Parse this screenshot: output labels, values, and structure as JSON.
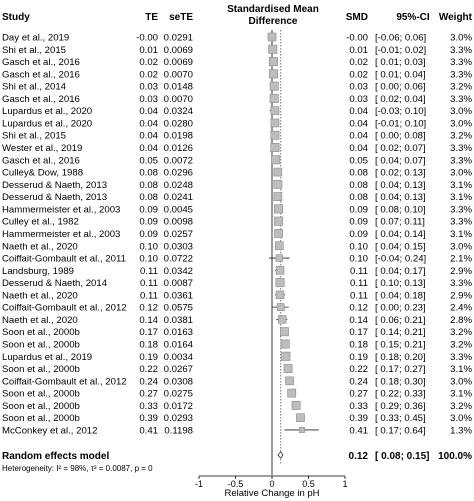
{
  "chart_data": {
    "type": "forest",
    "headers": {
      "study": "Study",
      "te": "TE",
      "sete": "seTE",
      "plot_title_line1": "Standardised Mean",
      "plot_title_line2": "Difference",
      "smd": "SMD",
      "ci": "95%-CI",
      "weight": "Weight"
    },
    "studies": [
      {
        "study": "Day et al., 2019",
        "te": "-0.00",
        "sete": "0.0291",
        "smd": -0.0,
        "lo": -0.06,
        "hi": 0.06,
        "ci": "[-0.06; 0.06]",
        "weight": "3.0%"
      },
      {
        "study": "Shi et al., 2015",
        "te": "0.01",
        "sete": "0.0069",
        "smd": 0.01,
        "lo": -0.01,
        "hi": 0.02,
        "ci": "[-0.01; 0.02]",
        "weight": "3.3%"
      },
      {
        "study": "Gasch et al., 2016",
        "te": "0.02",
        "sete": "0.0069",
        "smd": 0.02,
        "lo": 0.01,
        "hi": 0.03,
        "ci": "[ 0.01; 0.03]",
        "weight": "3.3%"
      },
      {
        "study": "Gasch et al., 2016",
        "te": "0.02",
        "sete": "0.0070",
        "smd": 0.02,
        "lo": 0.01,
        "hi": 0.04,
        "ci": "[ 0.01; 0.04]",
        "weight": "3.3%"
      },
      {
        "study": "Shi et al., 2014",
        "te": "0.03",
        "sete": "0.0148",
        "smd": 0.03,
        "lo": 0.0,
        "hi": 0.06,
        "ci": "[ 0.00; 0.06]",
        "weight": "3.2%"
      },
      {
        "study": "Gasch et al., 2016",
        "te": "0.03",
        "sete": "0.0070",
        "smd": 0.03,
        "lo": 0.02,
        "hi": 0.04,
        "ci": "[ 0.02; 0.04]",
        "weight": "3.3%"
      },
      {
        "study": "Lupardus et al., 2020",
        "te": "0.04",
        "sete": "0.0324",
        "smd": 0.04,
        "lo": -0.03,
        "hi": 0.1,
        "ci": "[-0.03; 0.10]",
        "weight": "3.0%"
      },
      {
        "study": "Lupardus et al., 2020",
        "te": "0.04",
        "sete": "0.0280",
        "smd": 0.04,
        "lo": -0.01,
        "hi": 0.1,
        "ci": "[-0.01; 0.10]",
        "weight": "3.0%"
      },
      {
        "study": "Shi et al., 2015",
        "te": "0.04",
        "sete": "0.0198",
        "smd": 0.04,
        "lo": 0.0,
        "hi": 0.08,
        "ci": "[ 0.00; 0.08]",
        "weight": "3.2%"
      },
      {
        "study": "Wester et al., 2019",
        "te": "0.04",
        "sete": "0.0126",
        "smd": 0.04,
        "lo": 0.02,
        "hi": 0.07,
        "ci": "[ 0.02; 0.07]",
        "weight": "3.3%"
      },
      {
        "study": "Gasch et al., 2016",
        "te": "0.05",
        "sete": "0.0072",
        "smd": 0.05,
        "lo": 0.04,
        "hi": 0.07,
        "ci": "[ 0.04; 0.07]",
        "weight": "3.3%"
      },
      {
        "study": "Culley& Dow, 1988",
        "te": "0.08",
        "sete": "0.0296",
        "smd": 0.08,
        "lo": 0.02,
        "hi": 0.13,
        "ci": "[ 0.02; 0.13]",
        "weight": "3.0%"
      },
      {
        "study": "Desserud & Naeth, 2013",
        "te": "0.08",
        "sete": "0.0248",
        "smd": 0.08,
        "lo": 0.04,
        "hi": 0.13,
        "ci": "[ 0.04; 0.13]",
        "weight": "3.1%"
      },
      {
        "study": "Desserud & Naeth, 2013",
        "te": "0.08",
        "sete": "0.0241",
        "smd": 0.08,
        "lo": 0.04,
        "hi": 0.13,
        "ci": "[ 0.04; 0.13]",
        "weight": "3.1%"
      },
      {
        "study": "Hammermeister et al., 2003",
        "te": "0.09",
        "sete": "0.0045",
        "smd": 0.09,
        "lo": 0.08,
        "hi": 0.1,
        "ci": "[ 0.08; 0.10]",
        "weight": "3.3%"
      },
      {
        "study": "Culley et al., 1982",
        "te": "0.09",
        "sete": "0.0098",
        "smd": 0.09,
        "lo": 0.07,
        "hi": 0.11,
        "ci": "[ 0.07; 0.11]",
        "weight": "3.3%"
      },
      {
        "study": "Hammermeister et al., 2003",
        "te": "0.09",
        "sete": "0.0257",
        "smd": 0.09,
        "lo": 0.04,
        "hi": 0.14,
        "ci": "[ 0.04; 0.14]",
        "weight": "3.1%"
      },
      {
        "study": "Naeth et al., 2020",
        "te": "0.10",
        "sete": "0.0303",
        "smd": 0.1,
        "lo": 0.04,
        "hi": 0.15,
        "ci": "[ 0.04; 0.15]",
        "weight": "3.0%"
      },
      {
        "study": "Coiffait-Gombault et al., 2011",
        "te": "0.10",
        "sete": "0.0722",
        "smd": 0.1,
        "lo": -0.04,
        "hi": 0.24,
        "ci": "[-0.04; 0.24]",
        "weight": "2.1%"
      },
      {
        "study": "Landsburg, 1989",
        "te": "0.11",
        "sete": "0.0342",
        "smd": 0.11,
        "lo": 0.04,
        "hi": 0.17,
        "ci": "[ 0.04; 0.17]",
        "weight": "2.9%"
      },
      {
        "study": "Desserud & Naeth, 2014",
        "te": "0.11",
        "sete": "0.0087",
        "smd": 0.11,
        "lo": 0.1,
        "hi": 0.13,
        "ci": "[ 0.10; 0.13]",
        "weight": "3.3%"
      },
      {
        "study": "Naeth et al., 2020",
        "te": "0.11",
        "sete": "0.0361",
        "smd": 0.11,
        "lo": 0.04,
        "hi": 0.18,
        "ci": "[ 0.04; 0.18]",
        "weight": "2.9%"
      },
      {
        "study": "Coiffait-Gombault et al., 2012",
        "te": "0.12",
        "sete": "0.0575",
        "smd": 0.12,
        "lo": 0.0,
        "hi": 0.23,
        "ci": "[ 0.00; 0.23]",
        "weight": "2.4%"
      },
      {
        "study": "Naeth et al., 2020",
        "te": "0.14",
        "sete": "0.0381",
        "smd": 0.14,
        "lo": 0.06,
        "hi": 0.21,
        "ci": "[ 0.06; 0.21]",
        "weight": "2.8%"
      },
      {
        "study": "Soon et al., 2000b",
        "te": "0.17",
        "sete": "0.0163",
        "smd": 0.17,
        "lo": 0.14,
        "hi": 0.21,
        "ci": "[ 0.14; 0.21]",
        "weight": "3.2%"
      },
      {
        "study": "Soon et al., 2000b",
        "te": "0.18",
        "sete": "0.0164",
        "smd": 0.18,
        "lo": 0.15,
        "hi": 0.21,
        "ci": "[ 0.15; 0.21]",
        "weight": "3.2%"
      },
      {
        "study": "Lupardus et al., 2019",
        "te": "0.19",
        "sete": "0.0034",
        "smd": 0.19,
        "lo": 0.18,
        "hi": 0.2,
        "ci": "[ 0.18; 0.20]",
        "weight": "3.3%"
      },
      {
        "study": "Soon et al., 2000b",
        "te": "0.22",
        "sete": "0.0267",
        "smd": 0.22,
        "lo": 0.17,
        "hi": 0.27,
        "ci": "[ 0.17; 0.27]",
        "weight": "3.1%"
      },
      {
        "study": "Coiffait-Gombault et al., 2012",
        "te": "0.24",
        "sete": "0.0308",
        "smd": 0.24,
        "lo": 0.18,
        "hi": 0.3,
        "ci": "[ 0.18; 0.30]",
        "weight": "3.0%"
      },
      {
        "study": "Soon et al., 2000b",
        "te": "0.27",
        "sete": "0.0275",
        "smd": 0.27,
        "lo": 0.22,
        "hi": 0.33,
        "ci": "[ 0.22; 0.33]",
        "weight": "3.1%"
      },
      {
        "study": "Soon et al., 2000b",
        "te": "0.33",
        "sete": "0.0172",
        "smd": 0.33,
        "lo": 0.29,
        "hi": 0.36,
        "ci": "[ 0.29; 0.36]",
        "weight": "3.2%"
      },
      {
        "study": "Soon et al., 2000b",
        "te": "0.39",
        "sete": "0.0293",
        "smd": 0.39,
        "lo": 0.33,
        "hi": 0.45,
        "ci": "[ 0.33; 0.45]",
        "weight": "3.0%"
      },
      {
        "study": "McConkey et al., 2012",
        "te": "0.41",
        "sete": "0.1198",
        "smd": 0.41,
        "lo": 0.17,
        "hi": 0.64,
        "ci": "[ 0.17; 0.64]",
        "weight": "1.3%"
      }
    ],
    "summary": {
      "label": "Random effects model",
      "smd": 0.12,
      "lo": 0.08,
      "hi": 0.15,
      "smd_text": "0.12",
      "ci": "[ 0.08; 0.15]",
      "weight": "100.0%"
    },
    "heterogeneity": "Heterogeneity: I² = 98%, τ² = 0.0087, p = 0",
    "xaxis": {
      "label": "Relative Change in pH",
      "ticks": [
        -1,
        -0.5,
        0,
        0.5,
        1
      ],
      "tick_labels": [
        "-1",
        "-0.5",
        "0",
        "0.5",
        "1"
      ],
      "range": [
        -1,
        1
      ]
    },
    "colors": {
      "square": "#bdbdbd",
      "square_stroke": "#8a8a8a",
      "ci_line": "#222222",
      "ref_line": "#000000",
      "summary_line": "#555555"
    }
  }
}
